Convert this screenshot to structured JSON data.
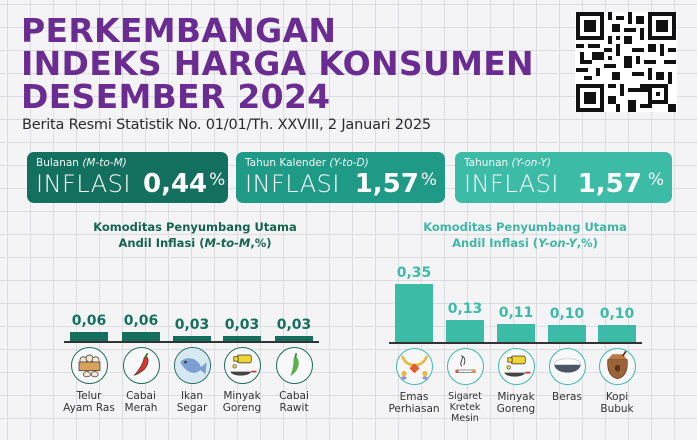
{
  "header": {
    "title_lines": [
      "PERKEMBANGAN",
      "INDEKS HARGA KONSUMEN",
      "DESEMBER 2024"
    ],
    "subtitle": "Berita Resmi Statistik No. 01/01/Th. XXVIII, 2 Januari 2025",
    "qr_code": "qr-code-icon"
  },
  "cards": [
    {
      "kind": "Bulanan",
      "kind_italic": "(M-to-M)",
      "label": "INFLASI",
      "value": "0,44",
      "unit": "%",
      "color": "#13705e"
    },
    {
      "kind": "Tahun Kalender",
      "kind_italic": "(Y-to-D)",
      "label": "INFLASI",
      "value": "1,57",
      "unit": "%",
      "color": "#1f9a86"
    },
    {
      "kind": "Tahunan",
      "kind_italic": "(Y-on-Y)",
      "label": "INFLASI",
      "value": "1,57",
      "unit": "%",
      "color": "#3cbba7"
    }
  ],
  "charts": {
    "left": {
      "title_line1": "Komoditas Penyumbang Utama",
      "title_line2_prefix": "Andil Inflasi (",
      "title_line2_italic": "M-to-M",
      "title_line2_suffix": ",%)",
      "color": "#14705c",
      "items": [
        {
          "value": "0,06",
          "label1": "Telur",
          "label2": "Ayam Ras",
          "icon": "egg-basket-icon"
        },
        {
          "value": "0,06",
          "label1": "Cabai",
          "label2": "Merah",
          "icon": "red-chili-icon"
        },
        {
          "value": "0,03",
          "label1": "Ikan",
          "label2": "Segar",
          "icon": "fish-icon"
        },
        {
          "value": "0,03",
          "label1": "Minyak",
          "label2": "Goreng",
          "icon": "cooking-oil-icon"
        },
        {
          "value": "0,03",
          "label1": "Cabai",
          "label2": "Rawit",
          "icon": "green-chili-icon"
        }
      ]
    },
    "right": {
      "title_line1": "Komoditas Penyumbang Utama",
      "title_line2_prefix": "Andil Inflasi (",
      "title_line2_italic": "Y-on-Y",
      "title_line2_suffix": ",%)",
      "color": "#3cbba7",
      "items": [
        {
          "value": "0,35",
          "label1": "Emas",
          "label2": "Perhiasan",
          "label3": "",
          "icon": "gold-jewelry-icon"
        },
        {
          "value": "0,13",
          "label1": "Sigaret",
          "label2": "Kretek",
          "label3": "Mesin",
          "icon": "cigarette-icon"
        },
        {
          "value": "0,11",
          "label1": "Minyak",
          "label2": "Goreng",
          "label3": "",
          "icon": "cooking-oil-icon"
        },
        {
          "value": "0,10",
          "label1": "Beras",
          "label2": "",
          "label3": "",
          "icon": "rice-bowl-icon"
        },
        {
          "value": "0,10",
          "label1": "Kopi",
          "label2": "Bubuk",
          "label3": "",
          "icon": "coffee-sack-icon"
        }
      ]
    }
  },
  "chart_data": [
    {
      "type": "bar",
      "title": "Komoditas Penyumbang Utama Andil Inflasi (M-to-M,%)",
      "categories": [
        "Telur Ayam Ras",
        "Cabai Merah",
        "Ikan Segar",
        "Minyak Goreng",
        "Cabai Rawit"
      ],
      "values": [
        0.06,
        0.06,
        0.03,
        0.03,
        0.03
      ],
      "xlabel": "",
      "ylabel": "Andil Inflasi (%)",
      "color": "#14705c",
      "grid": false,
      "legend": "none"
    },
    {
      "type": "bar",
      "title": "Komoditas Penyumbang Utama Andil Inflasi (Y-on-Y,%)",
      "categories": [
        "Emas Perhiasan",
        "Sigaret Kretek Mesin",
        "Minyak Goreng",
        "Beras",
        "Kopi Bubuk"
      ],
      "values": [
        0.35,
        0.13,
        0.11,
        0.1,
        0.1
      ],
      "xlabel": "",
      "ylabel": "Andil Inflasi (%)",
      "color": "#3cbba7",
      "grid": false,
      "legend": "none"
    }
  ]
}
